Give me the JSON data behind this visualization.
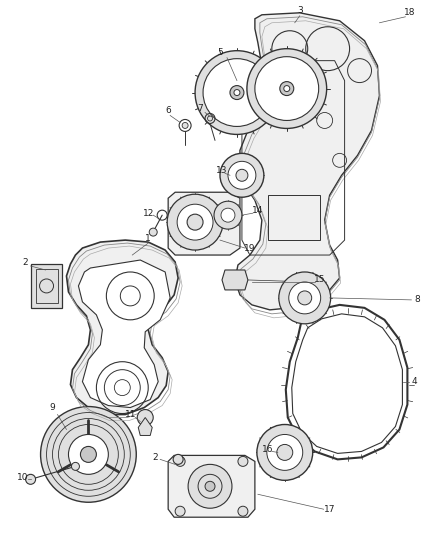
{
  "background_color": "#ffffff",
  "line_color": "#333333",
  "text_color": "#222222",
  "label_font_size": 6.5,
  "fill_light": "#f0f0f0",
  "fill_mid": "#e0e0e0",
  "fill_dark": "#c8c8c8"
}
